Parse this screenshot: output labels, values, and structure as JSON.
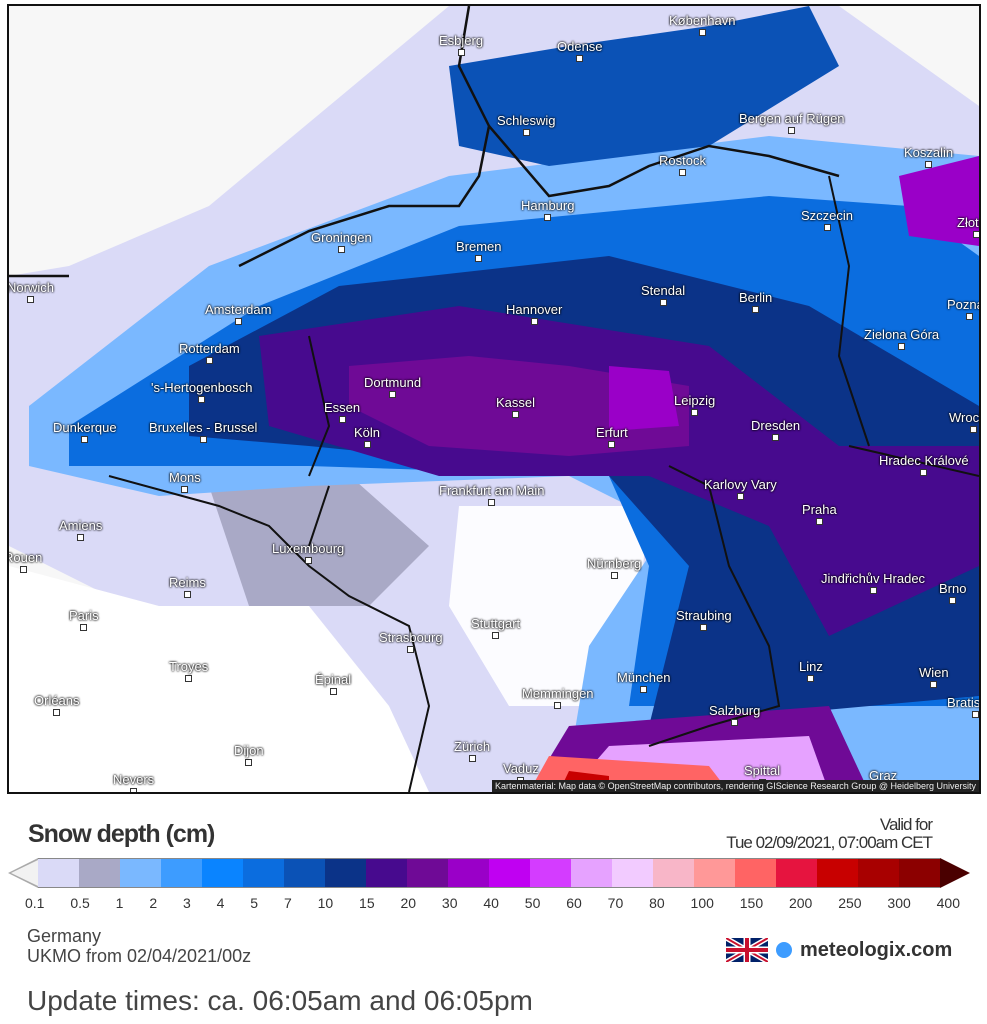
{
  "map": {
    "attribution": "Kartenmaterial: Map data © OpenStreetMap contributors, rendering GIScience Research Group @ Heidelberg University",
    "cities": [
      "København",
      "Esbjerg",
      "Odense",
      "Schleswig",
      "Bergen auf Rügen",
      "Rostock",
      "Koszalin",
      "Hamburg",
      "Szczecin",
      "Groningen",
      "Bremen",
      "Norwich",
      "Amsterdam",
      "Stendal",
      "Berlin",
      "Hannover",
      "Rotterdam",
      "Zielona Góra",
      "'s-Hertogenbosch",
      "Dortmund",
      "Essen",
      "Kassel",
      "Leipzig",
      "Dunkerque",
      "Bruxelles - Brussel",
      "Köln",
      "Erfurt",
      "Dresden",
      "Mons",
      "Frankfurt am Main",
      "Karlovy Vary",
      "Hradec Králové",
      "Praha",
      "Amiens",
      "Luxembourg",
      "Nürnberg",
      "Rouen",
      "Reims",
      "Jindřichův Hradec",
      "Brno",
      "Paris",
      "Stuttgart",
      "Straubing",
      "Strasbourg",
      "Troyes",
      "Épinal",
      "Linz",
      "Wien",
      "München",
      "Orléans",
      "Memmingen",
      "Salzburg",
      "Zürich",
      "Dijon",
      "Vaduz",
      "Spittal",
      "Graz",
      "Nevers",
      "Poznań",
      "Wrocław",
      "Złotów",
      "Bratislava"
    ]
  },
  "legend": {
    "title": "Snow depth (cm)",
    "valid_label": "Valid for",
    "valid_time": "Tue 02/09/2021, 07:00am CET",
    "ticks": [
      "0.1",
      "0.5",
      "1",
      "2",
      "3",
      "4",
      "5",
      "7",
      "10",
      "15",
      "20",
      "30",
      "40",
      "50",
      "60",
      "70",
      "80",
      "100",
      "150",
      "200",
      "250",
      "300",
      "400"
    ],
    "colors": [
      "#dadaf7",
      "#a9a9c6",
      "#7ab8ff",
      "#3d9cff",
      "#0a84ff",
      "#0b6ddf",
      "#0b52b6",
      "#0b3388",
      "#470a8e",
      "#6f0a96",
      "#9a00c8",
      "#c000f2",
      "#d43cff",
      "#e6a2ff",
      "#f2cbff",
      "#f8b6c8",
      "#ff9898",
      "#ff6464",
      "#e6143f",
      "#c80000",
      "#a80000",
      "#8c0000"
    ],
    "arrow_low": "#f2f2f2",
    "arrow_high": "#4a0000"
  },
  "footer": {
    "region": "Germany",
    "model": "UKMO from 02/04/2021/00z",
    "brand": "meteologix.com",
    "update": "Update times: ca. 06:05am and 06:05pm",
    "flag_icon": "uk-flag-icon"
  }
}
